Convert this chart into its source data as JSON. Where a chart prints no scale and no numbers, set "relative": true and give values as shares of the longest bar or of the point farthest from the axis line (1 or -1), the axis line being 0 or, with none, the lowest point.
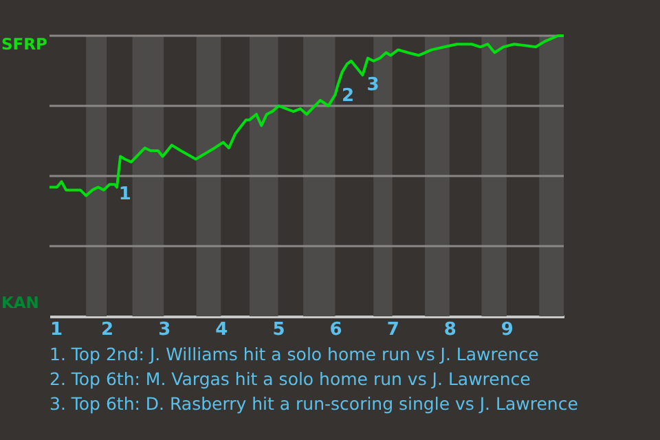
{
  "chart_data": {
    "type": "line",
    "relative": true,
    "x": [
      1.0,
      1.13,
      1.21,
      1.29,
      1.54,
      1.64,
      1.75,
      1.85,
      1.95,
      2.05,
      2.14,
      2.18,
      2.24,
      2.32,
      2.43,
      2.67,
      2.77,
      2.9,
      2.98,
      3.14,
      3.3,
      3.56,
      3.89,
      4.04,
      4.14,
      4.25,
      4.44,
      4.5,
      4.62,
      4.71,
      4.8,
      4.9,
      5.01,
      5.14,
      5.27,
      5.39,
      5.5,
      5.74,
      5.88,
      6.0,
      6.04,
      6.12,
      6.21,
      6.28,
      6.4,
      6.48,
      6.57,
      6.67,
      6.78,
      6.89,
      6.97,
      7.1,
      7.27,
      7.46,
      7.69,
      7.91,
      8.13,
      8.39,
      8.54,
      8.67,
      8.79,
      8.94,
      9.13,
      9.51,
      9.67,
      9.9,
      10.0
    ],
    "series": [
      {
        "color": "#00dd11",
        "values": [
          0.46,
          0.46,
          0.48,
          0.45,
          0.45,
          0.43,
          0.45,
          0.46,
          0.45,
          0.47,
          0.47,
          0.46,
          0.57,
          0.56,
          0.55,
          0.6,
          0.59,
          0.59,
          0.57,
          0.61,
          0.59,
          0.56,
          0.6,
          0.62,
          0.6,
          0.65,
          0.7,
          0.7,
          0.72,
          0.68,
          0.72,
          0.73,
          0.75,
          0.74,
          0.73,
          0.74,
          0.72,
          0.77,
          0.75,
          0.79,
          0.82,
          0.87,
          0.9,
          0.91,
          0.88,
          0.86,
          0.92,
          0.91,
          0.92,
          0.94,
          0.93,
          0.95,
          0.94,
          0.93,
          0.95,
          0.96,
          0.97,
          0.97,
          0.96,
          0.97,
          0.94,
          0.96,
          0.97,
          0.96,
          0.98,
          1.0,
          1.0
        ]
      }
    ],
    "xlim": [
      1,
      10
    ],
    "xticks": [
      1,
      2,
      3,
      4,
      5,
      6,
      7,
      8,
      9
    ],
    "grid": "y",
    "line_style": "solid",
    "bands": [
      {
        "axis": "x",
        "from": 1.64,
        "to": 2,
        "color": "#4d4b49"
      },
      {
        "axis": "x",
        "from": 2.45,
        "to": 3,
        "color": "#4d4b49"
      },
      {
        "axis": "x",
        "from": 3.57,
        "to": 4,
        "color": "#4d4b49"
      },
      {
        "axis": "x",
        "from": 4.5,
        "to": 5,
        "color": "#4d4b49"
      },
      {
        "axis": "x",
        "from": 5.44,
        "to": 6,
        "color": "#4d4b49"
      },
      {
        "axis": "x",
        "from": 6.67,
        "to": 7,
        "color": "#4d4b49"
      },
      {
        "axis": "x",
        "from": 7.57,
        "to": 8,
        "color": "#4d4b49"
      },
      {
        "axis": "x",
        "from": 8.56,
        "to": 9,
        "color": "#4d4b49"
      },
      {
        "axis": "x",
        "from": 9.57,
        "to": 10,
        "color": "#4d4b49"
      }
    ],
    "annotations": [
      {
        "text": "1",
        "x": 2.14,
        "y": 0.47
      },
      {
        "text": "2",
        "x": 6.04,
        "y": 0.82
      },
      {
        "text": "3",
        "x": 6.48,
        "y": 0.86
      },
      "SFRP",
      "KAN",
      "1. Top 2nd: J. Williams hit a solo home run vs J. Lawrence",
      "2. Top 6th: M. Vargas hit a solo home run vs J. Lawrence",
      "3. Top 6th: D. Rasberry hit a run-scoring single vs J. Lawrence"
    ]
  }
}
